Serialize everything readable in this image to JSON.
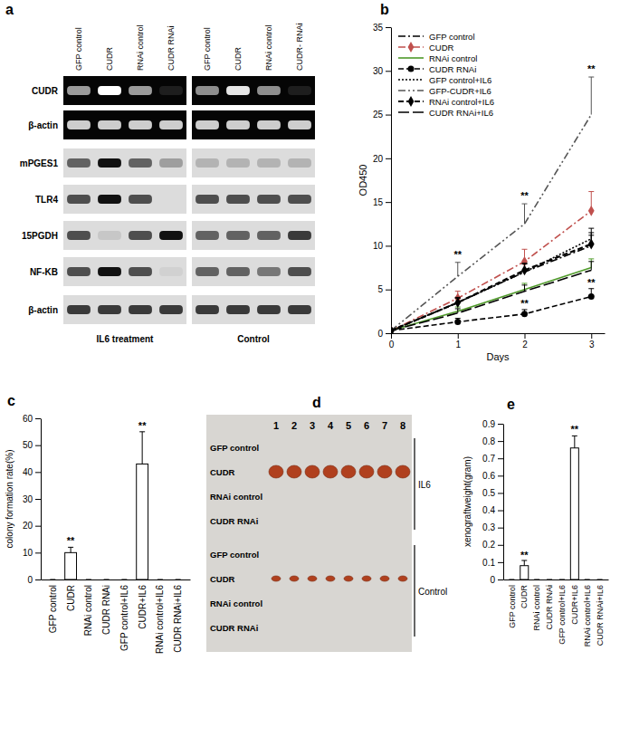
{
  "chart_data": [
    {
      "title": "b",
      "type": "line",
      "x_label": "Days",
      "y_label": "OD450",
      "x": [
        0,
        1,
        2,
        3
      ],
      "xlim": [
        0,
        3.2
      ],
      "xticks": [
        0,
        1,
        2,
        3
      ],
      "ylim": [
        0,
        35
      ],
      "yticks": [
        0,
        5,
        10,
        15,
        20,
        25,
        30,
        35
      ],
      "legend": "upper left",
      "series": [
        {
          "name": "GFP control",
          "color": "#000000",
          "line_style": "dashdot",
          "marker": "none",
          "values": [
            0.3,
            3.5,
            7.0,
            10.0
          ],
          "errors": [
            0,
            0.6,
            1.0,
            1.5
          ]
        },
        {
          "name": "CUDR",
          "color": "#c0504d",
          "line_style": "dashdot",
          "marker": "diamond",
          "values": [
            0.3,
            4.0,
            8.2,
            14.0
          ],
          "errors": [
            0,
            0.8,
            1.4,
            2.2
          ]
        },
        {
          "name": "RNAi control",
          "color": "#4f9a2a",
          "line_style": "solid",
          "marker": "none",
          "values": [
            0.3,
            2.5,
            5.0,
            7.5
          ],
          "errors": [
            0,
            0.5,
            0.7,
            1.0
          ]
        },
        {
          "name": "CUDR RNAi",
          "color": "#000000",
          "line_style": "dashed",
          "marker": "circle",
          "values": [
            0.3,
            1.3,
            2.2,
            4.2
          ],
          "errors": [
            0,
            0.4,
            0.5,
            0.9
          ]
        },
        {
          "name": "GFP control+IL6",
          "color": "#000000",
          "line_style": "dotted",
          "marker": "none",
          "values": [
            0.3,
            3.5,
            7.0,
            10.8
          ],
          "errors": [
            0,
            0.6,
            0.9,
            1.2
          ]
        },
        {
          "name": "GFP-CUDR+IL6",
          "color": "#555555",
          "line_style": "dashdotdot",
          "marker": "none",
          "values": [
            0.3,
            6.5,
            12.5,
            25.0
          ],
          "errors": [
            0,
            1.6,
            2.3,
            4.3
          ]
        },
        {
          "name": "RNAi control+IL6",
          "color": "#000000",
          "line_style": "dashed",
          "marker": "diamond",
          "values": [
            0.3,
            3.5,
            7.2,
            10.2
          ],
          "errors": [
            0,
            0.5,
            0.8,
            1.0
          ]
        },
        {
          "name": "CUDR RNAi+IL6",
          "color": "#000000",
          "line_style": "longdash",
          "marker": "none",
          "values": [
            0.3,
            2.3,
            4.8,
            7.2
          ],
          "errors": [
            0,
            0.5,
            0.7,
            1.0
          ]
        }
      ],
      "annotations": [
        {
          "text": "**",
          "x": 1,
          "y": 8.6
        },
        {
          "text": "**",
          "x": 2,
          "y": 15.3
        },
        {
          "text": "**",
          "x": 3,
          "y": 29.8
        },
        {
          "text": "**",
          "x": 2,
          "y": 3.0
        },
        {
          "text": "**",
          "x": 3,
          "y": 5.4
        }
      ]
    },
    {
      "title": "c",
      "type": "bar",
      "y_label": "colony formation rate(%)",
      "categories": [
        "GFP control",
        "CUDR",
        "RNAi control",
        "CUDR RNAi",
        "GFP control+IL6",
        "CUDR+IL6",
        "RNAi control+IL6",
        "CUDR RNAi+IL6"
      ],
      "values": [
        0,
        10,
        0,
        0,
        0,
        43,
        0,
        0
      ],
      "errors": [
        0,
        2,
        0,
        0,
        0,
        12,
        0,
        0
      ],
      "color": "#ffffff",
      "ylim": [
        0,
        60
      ],
      "yticks": [
        0,
        10,
        20,
        30,
        40,
        50,
        60
      ],
      "annotations": [
        {
          "text": "**",
          "x": "CUDR",
          "y": 13
        },
        {
          "text": "**",
          "x": "CUDR+IL6",
          "y": 56
        }
      ]
    },
    {
      "title": "e",
      "type": "bar",
      "y_label": "xenograftweight(gram)",
      "categories": [
        "GFP control",
        "CUDR",
        "RNAi control",
        "CUDR RNAi",
        "GFP control+IL6",
        "CUDR+IL6",
        "RNAi control+IL6",
        "CUDR RNAi+IL6"
      ],
      "values": [
        0,
        0.08,
        0,
        0,
        0,
        0.76,
        0,
        0
      ],
      "errors": [
        0,
        0.03,
        0,
        0,
        0,
        0.07,
        0,
        0
      ],
      "color": "#ffffff",
      "ylim": [
        0,
        0.9
      ],
      "yticks": [
        0,
        0.1,
        0.2,
        0.3,
        0.4,
        0.5,
        0.6,
        0.7,
        0.8,
        0.9
      ],
      "annotations": [
        {
          "text": "**",
          "x": "CUDR",
          "y": 0.12
        },
        {
          "text": "**",
          "x": "CUDR+IL6",
          "y": 0.85
        }
      ]
    }
  ],
  "blot": {
    "title": "a",
    "row_labels": [
      "CUDR",
      "β-actin",
      "mPGES1",
      "TLR4",
      "15PGDH",
      "NF-KB",
      "β-actin"
    ],
    "groups": [
      {
        "label": "IL6 treatment",
        "lanes": [
          "GFP control",
          "CUDR",
          "RNAi control",
          "CUDR RNAi"
        ],
        "intensity": [
          [
            0.6,
            1,
            0.6,
            0.1
          ],
          [
            0.8,
            0.8,
            0.8,
            0.8
          ],
          [
            0.6,
            1,
            0.6,
            0.3
          ],
          [
            0.7,
            1,
            0.7,
            0
          ],
          [
            0.7,
            0.1,
            0.7,
            1
          ],
          [
            0.7,
            1,
            0.7,
            0.05
          ],
          [
            0.8,
            0.8,
            0.8,
            0.8
          ]
        ]
      },
      {
        "label": "Control",
        "lanes": [
          "GFP control",
          "CUDR",
          "RNAi control",
          "CUDR- RNAi"
        ],
        "intensity": [
          [
            0.55,
            0.9,
            0.55,
            0.1
          ],
          [
            0.8,
            0.8,
            0.8,
            0.8
          ],
          [
            0.2,
            0.2,
            0.2,
            0.2
          ],
          [
            0.7,
            0.7,
            0.7,
            0.7
          ],
          [
            0.6,
            0.6,
            0.6,
            0.8
          ],
          [
            0.6,
            0.6,
            0.5,
            0.7
          ],
          [
            0.8,
            0.8,
            0.8,
            0.8
          ]
        ]
      }
    ]
  },
  "xenograft_photo": {
    "title": "d",
    "lane_numbers": [
      1,
      2,
      3,
      4,
      5,
      6,
      7,
      8
    ],
    "groups": [
      {
        "label": "IL6",
        "rows": [
          {
            "label": "GFP control",
            "tumors": false
          },
          {
            "label": "CUDR",
            "tumors": true
          },
          {
            "label": "RNAi control",
            "tumors": false
          },
          {
            "label": "CUDR RNAi",
            "tumors": false
          }
        ]
      },
      {
        "label": "Control",
        "rows": [
          {
            "label": "GFP control",
            "tumors": false
          },
          {
            "label": "CUDR",
            "tumors": true
          },
          {
            "label": "RNAi control",
            "tumors": false
          },
          {
            "label": "CUDR RNAi",
            "tumors": false
          }
        ]
      }
    ]
  }
}
